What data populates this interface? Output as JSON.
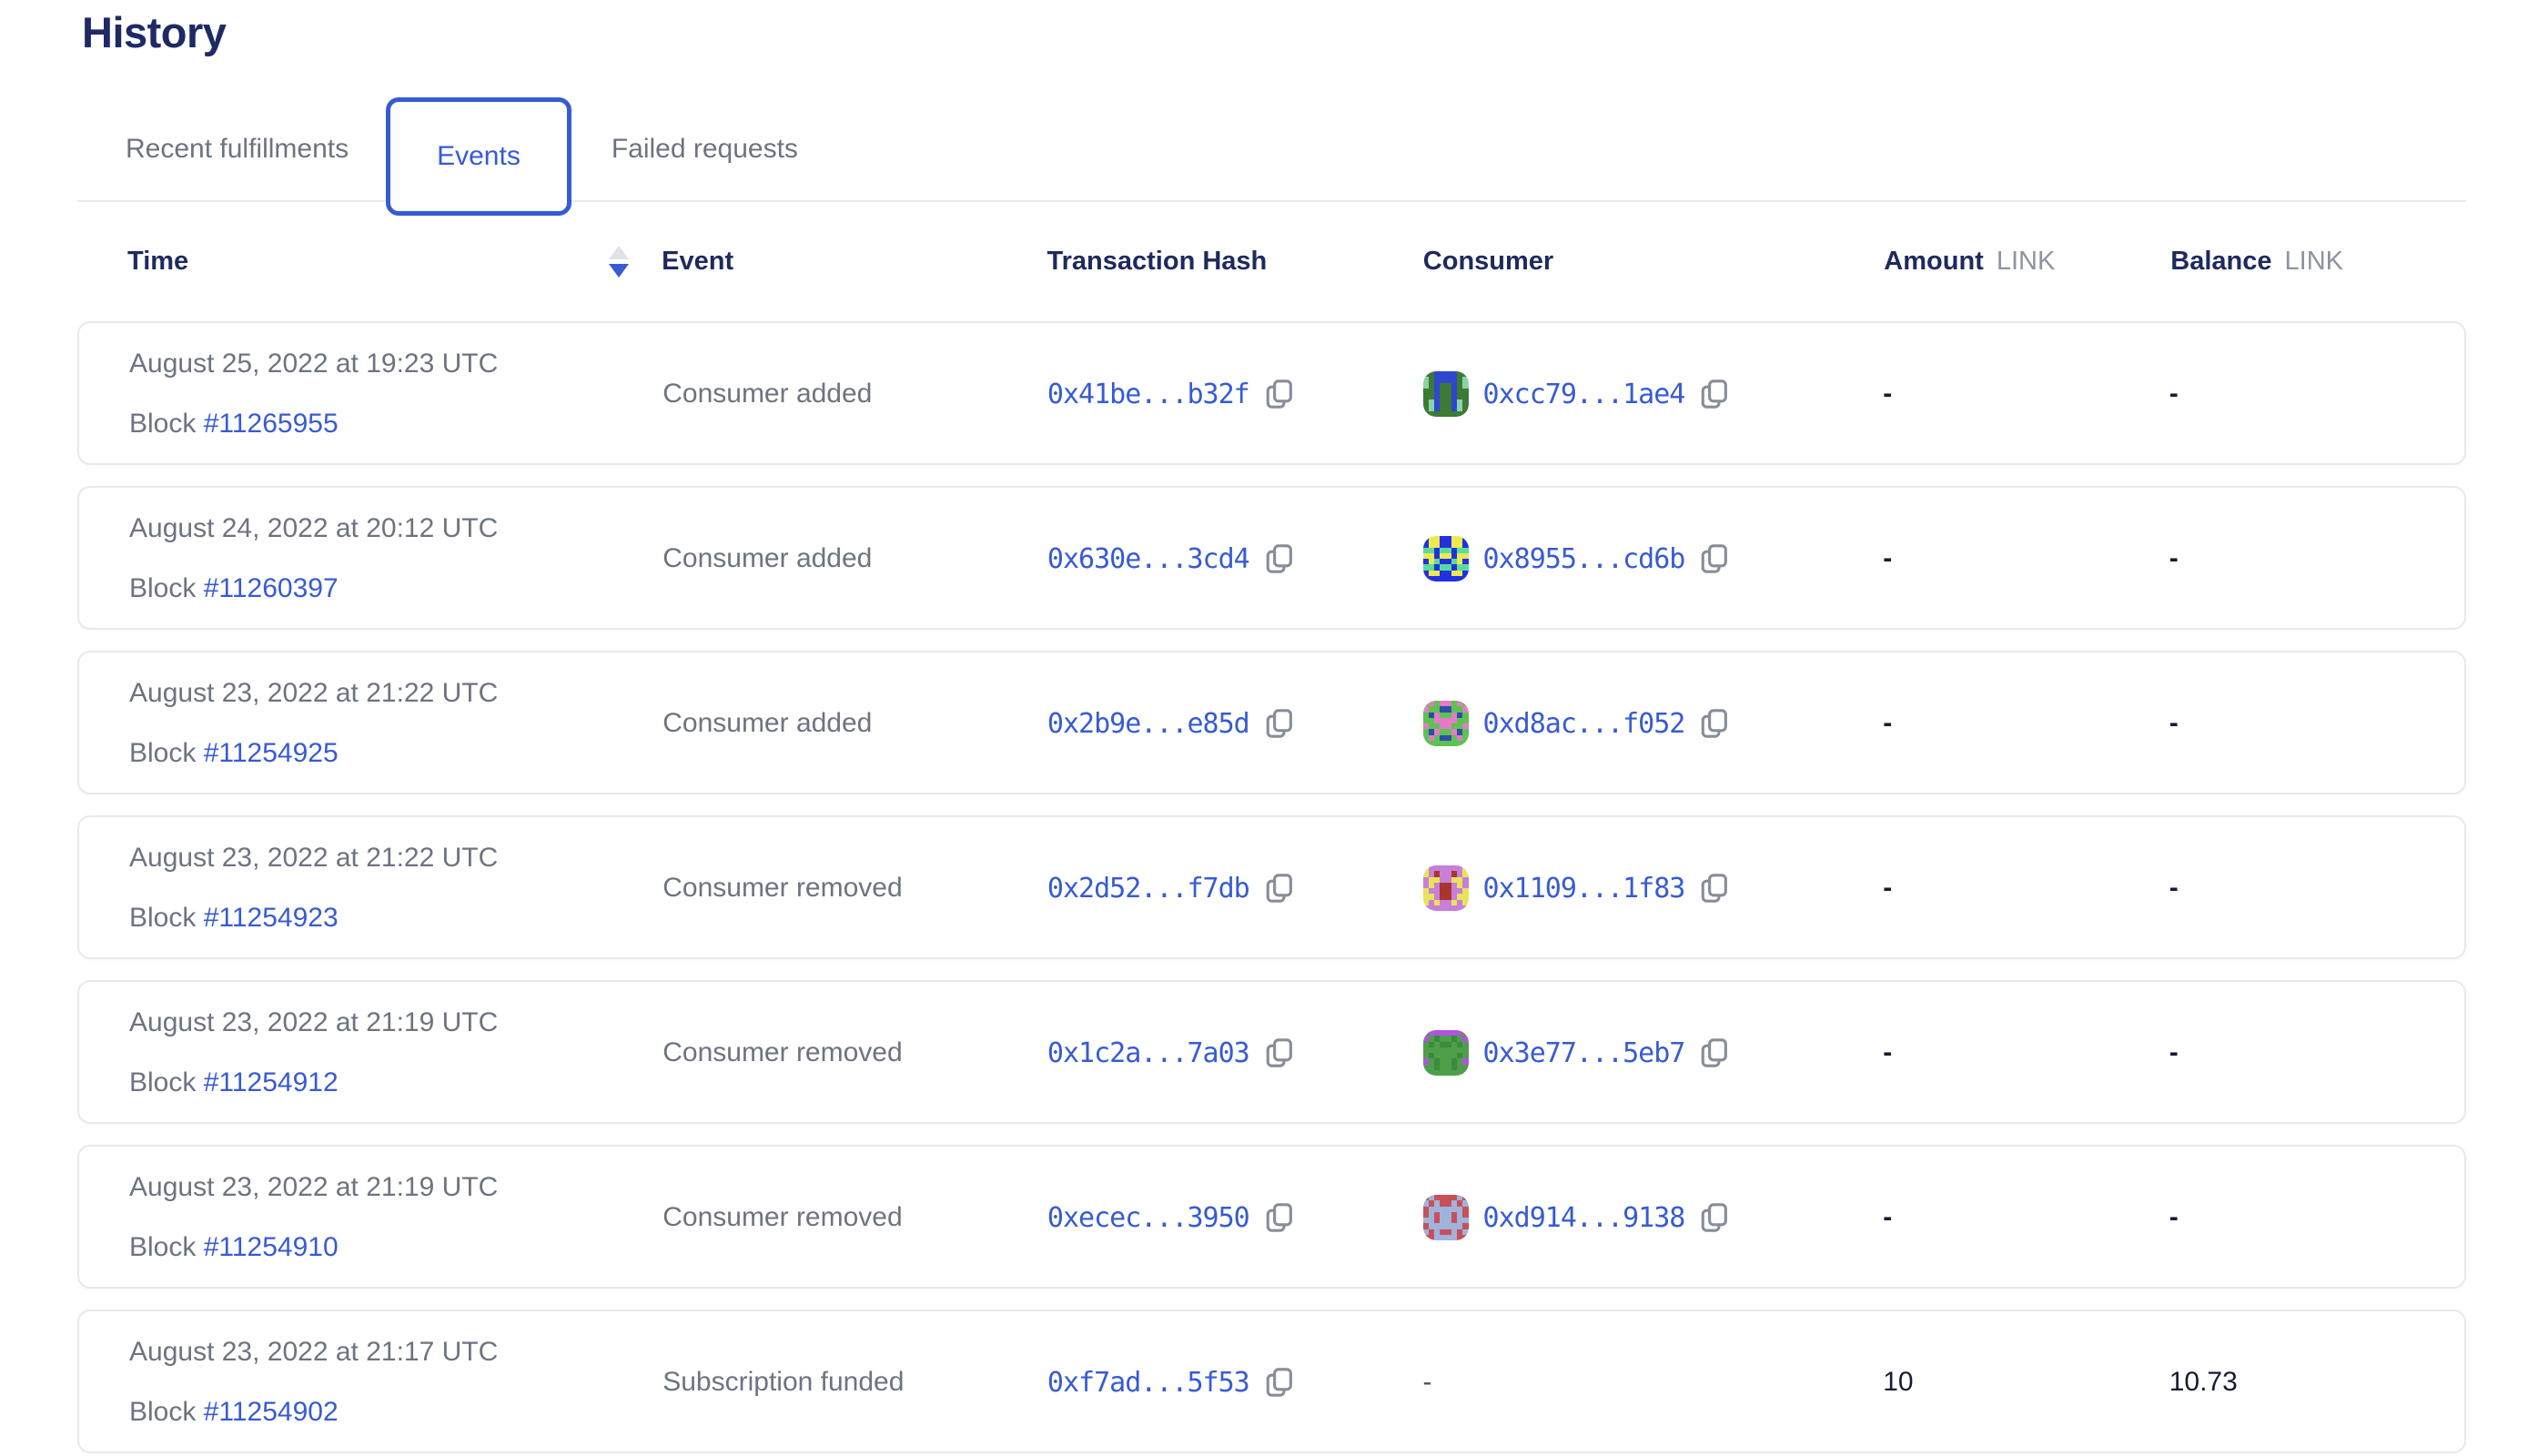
{
  "page": {
    "title": "History"
  },
  "colors": {
    "brand_blue": "#375bd2",
    "heading_navy": "#1e2a64",
    "header_navy": "#1e2a5e",
    "gray_text": "#6d7380",
    "unit_gray": "#8d93a0",
    "border_gray": "#e8e9ed",
    "value_dark": "#171b33",
    "sort_inactive": "#dfe2e8"
  },
  "tabs": [
    {
      "label": "Recent fulfillments",
      "active": false
    },
    {
      "label": "Events",
      "active": true
    },
    {
      "label": "Failed requests",
      "active": false
    }
  ],
  "table": {
    "columns": {
      "time": "Time",
      "event": "Event",
      "hash": "Transaction Hash",
      "consumer": "Consumer",
      "amount": "Amount",
      "balance": "Balance",
      "unit": "LINK"
    },
    "sort": {
      "column": "Time",
      "direction": "desc"
    },
    "block_prefix": "Block",
    "rows": [
      {
        "time": "August 25, 2022 at 19:23 UTC",
        "block": "#11265955",
        "event": "Consumer added",
        "tx": "0x41be...b32f",
        "consumer": "0xcc79...1ae4",
        "amount": "-",
        "balance": "-",
        "avatar": {
          "palette": {
            "b": "#3d7a33",
            "f": "#2f46d3",
            "a": "#8bd3a5"
          },
          "grid": [
            "bbffffbb",
            "abffffba",
            "abfbbfba",
            "bbfbbfbb",
            "bbfbbfbb",
            "bafbbfab",
            "bafbbfab",
            "bbbbbbbb"
          ]
        }
      },
      {
        "time": "August 24, 2022 at 20:12 UTC",
        "block": "#11260397",
        "event": "Consumer added",
        "tx": "0x630e...3cd4",
        "consumer": "0x8955...cd6b",
        "amount": "-",
        "balance": "-",
        "avatar": {
          "palette": {
            "b": "#2231e0",
            "f": "#eee94e",
            "a": "#5bdc9b"
          },
          "grid": [
            "bffbbffb",
            "bffbbffb",
            "aabaabaa",
            "ffbffbff",
            "bfabbafb",
            "aabaabaa",
            "bffbbffb",
            "bbbbbbbb"
          ]
        }
      },
      {
        "time": "August 23, 2022 at 21:22 UTC",
        "block": "#11254925",
        "event": "Consumer added",
        "tx": "0x2b9e...e85d",
        "consumer": "0xd8ac...f052",
        "amount": "-",
        "balance": "-",
        "avatar": {
          "palette": {
            "b": "#5cc351",
            "f": "#e57bc6",
            "a": "#2c4da8"
          },
          "grid": [
            "bfbffbfb",
            "fbbaabbf",
            "bafbbfab",
            "bbffffbb",
            "fbbffbbf",
            "bafbbfab",
            "bfbaabfb",
            "bbbbbbbb"
          ]
        }
      },
      {
        "time": "August 23, 2022 at 21:22 UTC",
        "block": "#11254923",
        "event": "Consumer removed",
        "tx": "0x2d52...f7db",
        "consumer": "0x1109...1f83",
        "amount": "-",
        "balance": "-",
        "avatar": {
          "palette": {
            "b": "#c87fd6",
            "f": "#e9e35c",
            "a": "#a8362d"
          },
          "grid": [
            "fbbbbbbf",
            "fbabbabf",
            "bffbbffb",
            "bfbaabfb",
            "fbbaabbf",
            "ffbaabff",
            "fbfbbfbf",
            "bbbbbbbb"
          ]
        }
      },
      {
        "time": "August 23, 2022 at 21:19 UTC",
        "block": "#11254912",
        "event": "Consumer removed",
        "tx": "0x1c2a...7a03",
        "consumer": "0x3e77...5eb7",
        "amount": "-",
        "balance": "-",
        "avatar": {
          "palette": {
            "b": "#4e9e4c",
            "f": "#ae54de",
            "a": "#3c8a3e"
          },
          "grid": [
            "bffffffb",
            "fbabbabf",
            "babaabab",
            "bbbbbbbb",
            "babbbbab",
            "fbabbabf",
            "bbabbabb",
            "bbbbbbbb"
          ]
        }
      },
      {
        "time": "August 23, 2022 at 21:19 UTC",
        "block": "#11254910",
        "event": "Consumer removed",
        "tx": "0xecec...3950",
        "consumer": "0xd914...9138",
        "amount": "-",
        "balance": "-",
        "avatar": {
          "palette": {
            "b": "#c9505a",
            "f": "#9fb3db",
            "a": "#8a3844"
          },
          "grid": [
            "bfbbbbfb",
            "fbfbbfbf",
            "bffffffb",
            "bfbffbfb",
            "ffbffbff",
            "bffffffb",
            "fbfbbfbf",
            "bbffffbb"
          ]
        }
      },
      {
        "time": "August 23, 2022 at 21:17 UTC",
        "block": "#11254902",
        "event": "Subscription funded",
        "tx": "0xf7ad...5f53",
        "consumer": null,
        "consumer_placeholder": "-",
        "amount": "10",
        "balance": "10.73",
        "avatar": null
      }
    ]
  }
}
